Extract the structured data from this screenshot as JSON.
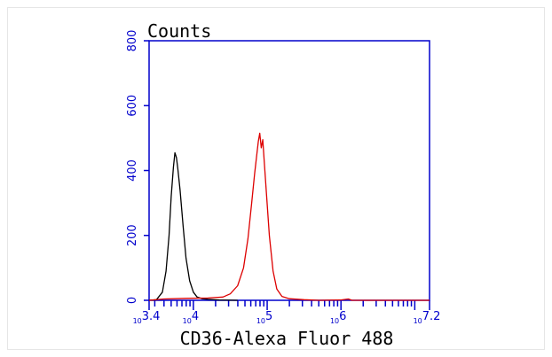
{
  "chart_data": {
    "type": "line",
    "ylabel": "Counts",
    "xlabel": "CD36-Alexa Fluor 488",
    "x_scale": "log",
    "xlim": [
      3.4,
      7.2
    ],
    "ylim": [
      0,
      800
    ],
    "y_ticks": [
      0,
      200,
      400,
      600,
      800
    ],
    "x_ticks": [
      {
        "base": "10",
        "exp": "3.4",
        "value": 3.4
      },
      {
        "base": "10",
        "exp": "4",
        "value": 4
      },
      {
        "base": "10",
        "exp": "5",
        "value": 5
      },
      {
        "base": "10",
        "exp": "6",
        "value": 6
      },
      {
        "base": "10",
        "exp": "7.2",
        "value": 7.2
      }
    ],
    "grid": false,
    "axis_color": "#0000cc",
    "series": [
      {
        "color": "#000000",
        "points": [
          [
            3.4,
            0
          ],
          [
            3.5,
            2
          ],
          [
            3.58,
            25
          ],
          [
            3.63,
            90
          ],
          [
            3.67,
            200
          ],
          [
            3.7,
            320
          ],
          [
            3.73,
            410
          ],
          [
            3.75,
            455
          ],
          [
            3.77,
            440
          ],
          [
            3.79,
            405
          ],
          [
            3.82,
            340
          ],
          [
            3.86,
            230
          ],
          [
            3.9,
            130
          ],
          [
            3.95,
            60
          ],
          [
            4.0,
            25
          ],
          [
            4.05,
            10
          ],
          [
            4.12,
            5
          ],
          [
            4.2,
            3
          ],
          [
            4.35,
            1
          ],
          [
            4.6,
            0
          ]
        ]
      },
      {
        "color": "#dd0000",
        "points": [
          [
            3.4,
            0
          ],
          [
            3.6,
            4
          ],
          [
            3.9,
            6
          ],
          [
            4.2,
            7
          ],
          [
            4.4,
            10
          ],
          [
            4.5,
            20
          ],
          [
            4.6,
            45
          ],
          [
            4.68,
            100
          ],
          [
            4.74,
            190
          ],
          [
            4.79,
            300
          ],
          [
            4.83,
            390
          ],
          [
            4.86,
            450
          ],
          [
            4.88,
            490
          ],
          [
            4.9,
            515
          ],
          [
            4.92,
            470
          ],
          [
            4.94,
            495
          ],
          [
            4.96,
            430
          ],
          [
            4.99,
            330
          ],
          [
            5.03,
            200
          ],
          [
            5.08,
            90
          ],
          [
            5.13,
            35
          ],
          [
            5.2,
            12
          ],
          [
            5.3,
            5
          ],
          [
            5.5,
            2
          ],
          [
            5.7,
            0
          ],
          [
            6.0,
            1
          ],
          [
            6.1,
            4
          ],
          [
            6.15,
            0
          ],
          [
            6.5,
            0
          ],
          [
            7.2,
            0
          ]
        ]
      }
    ]
  }
}
